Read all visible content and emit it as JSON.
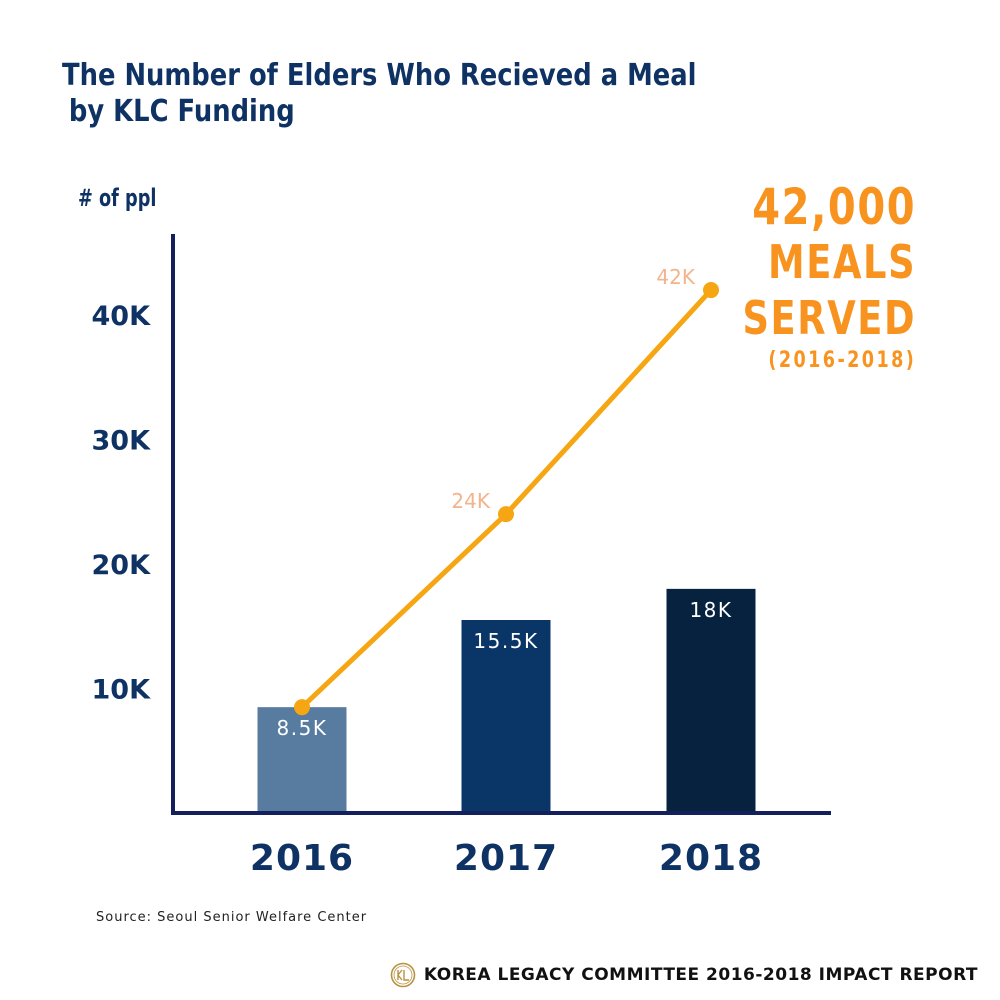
{
  "title_line1": "The Number of Elders Who Recieved a Meal",
  "title_line2": "by KLC Funding",
  "ylabel": "# of ppl",
  "callout": {
    "line1": "42,000",
    "line2": "MEALS",
    "line3": "SERVED",
    "line4": "(2016-2018)"
  },
  "source": "Source: Seoul Senior Welfare Center",
  "footer": "KOREA LEGACY COMMITTEE 2016-2018 IMPACT REPORT",
  "logo_icon": "klc-seal-icon",
  "colors": {
    "axis": "#14205e",
    "bar_2016": "#587ca0",
    "bar_2017": "#0a3567",
    "bar_2018": "#06223f",
    "line": "#f6a613",
    "line_label": "#f3b48c",
    "tick_text": "#0e3263",
    "callout": "#f7931e"
  },
  "chart_data": {
    "type": "bar",
    "categories": [
      "2016",
      "2017",
      "2018"
    ],
    "yticks": [
      "10K",
      "20K",
      "30K",
      "40K"
    ],
    "ytick_values": [
      10000,
      20000,
      30000,
      40000
    ],
    "ylim": [
      0,
      46500
    ],
    "series": [
      {
        "type": "bar",
        "values": [
          8500,
          15500,
          18000
        ],
        "labels": [
          "8.5K",
          "15.5K",
          "18K"
        ]
      },
      {
        "type": "line",
        "values": [
          8500,
          24000,
          42000
        ],
        "labels": [
          "",
          "24K",
          "42K"
        ]
      }
    ]
  }
}
